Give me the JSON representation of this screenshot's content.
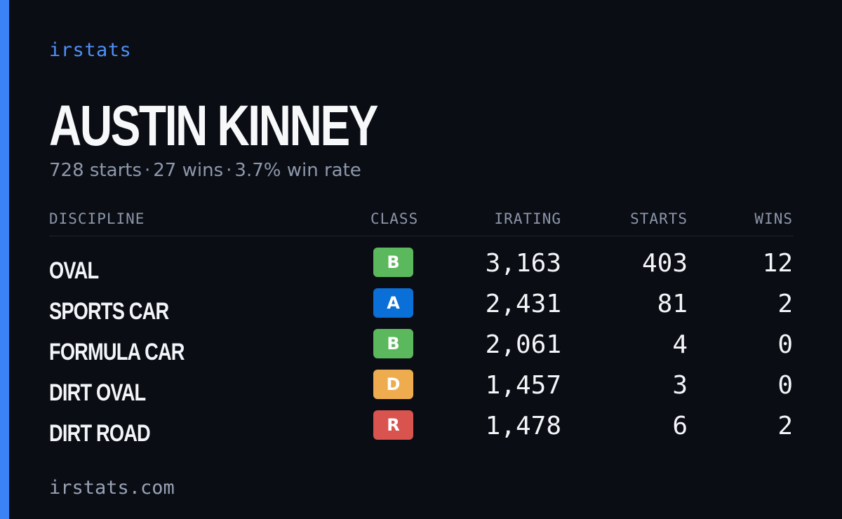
{
  "brand": "irstats",
  "driver": {
    "name": "AUSTIN KINNEY",
    "starts_text": "728 starts",
    "wins_text": "27 wins",
    "win_rate_text": "3.7% win rate",
    "separator": "·"
  },
  "table": {
    "headers": {
      "discipline": "DISCIPLINE",
      "class": "CLASS",
      "irating": "IRATING",
      "starts": "STARTS",
      "wins": "WINS"
    },
    "rows": [
      {
        "discipline": "OVAL",
        "class": "B",
        "class_color": "#5cb85c",
        "irating": "3,163",
        "starts": "403",
        "wins": "12"
      },
      {
        "discipline": "SPORTS CAR",
        "class": "A",
        "class_color": "#0a6fd6",
        "irating": "2,431",
        "starts": "81",
        "wins": "2"
      },
      {
        "discipline": "FORMULA CAR",
        "class": "B",
        "class_color": "#5cb85c",
        "irating": "2,061",
        "starts": "4",
        "wins": "0"
      },
      {
        "discipline": "DIRT OVAL",
        "class": "D",
        "class_color": "#eeac4e",
        "irating": "1,457",
        "starts": "3",
        "wins": "0"
      },
      {
        "discipline": "DIRT ROAD",
        "class": "R",
        "class_color": "#d9534f",
        "irating": "1,478",
        "starts": "6",
        "wins": "2"
      }
    ]
  },
  "footer": "irstats.com",
  "colors": {
    "accent": "#3b82f6",
    "background": "#0a0d14"
  }
}
